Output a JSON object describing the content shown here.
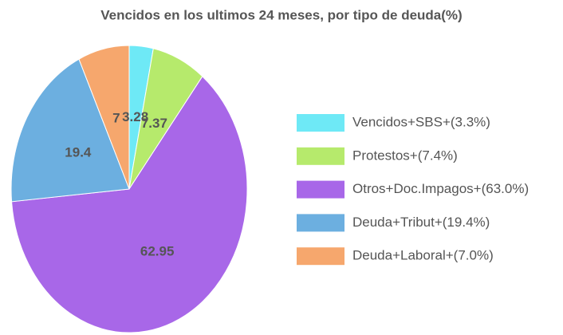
{
  "chart_data": {
    "type": "pie",
    "title": "Vencidos en los ultimos 24 meses, por tipo de deuda(%)",
    "categories": [
      "Vencidos+SBS+(3.3%)",
      "Protestos+(7.4%)",
      "Otros+Doc.Impagos+(63.0%)",
      "Deuda+Tribut+(19.4%)",
      "Deuda+Laboral+(7.0%)"
    ],
    "values": [
      3.28,
      7.37,
      62.95,
      19.4,
      7
    ],
    "colors": [
      "#6ee9f6",
      "#b6ea6c",
      "#a867e8",
      "#6cafe0",
      "#f6a76d"
    ]
  }
}
